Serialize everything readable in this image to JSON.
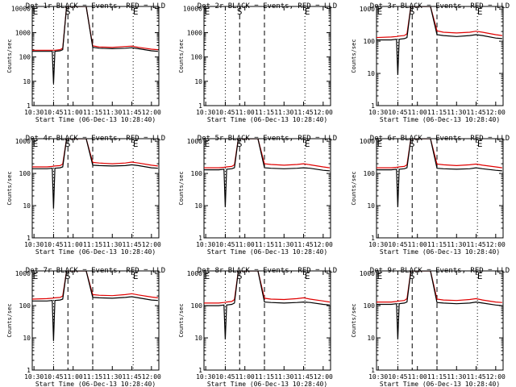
{
  "page": {
    "background": "#ffffff",
    "axis_color": "#000000",
    "events_color": "#000000",
    "lld_color": "#e00000"
  },
  "chart_data": [
    {
      "type": "line",
      "title": "Det 1r BLACK = Events, RED = LLD",
      "xlabel": "Start Time (06-Dec-13 10:28:40)",
      "ylabel": "Counts/sec",
      "x_ticks": [
        "10:30",
        "10:45",
        "11:00",
        "11:15",
        "11:30",
        "11:45",
        "12:00"
      ],
      "y_ticks": [
        "1",
        "10",
        "100",
        "1000",
        "10000"
      ],
      "ylim": [
        1,
        12000
      ],
      "yscale": "log",
      "annotations": [
        "E",
        "S",
        "E"
      ],
      "series": [
        {
          "name": "Events",
          "color": "#000000",
          "x": [
            "10:28",
            "10:40",
            "10:44",
            "10:45",
            "10:46",
            "10:50",
            "10:52",
            "10:55",
            "11:00",
            "11:05",
            "11:10",
            "11:15",
            "11:20",
            "11:30",
            "11:40",
            "11:45",
            "11:50",
            "12:00",
            "12:05"
          ],
          "y": [
            170,
            170,
            170,
            8,
            170,
            180,
            200,
            12000,
            12000,
            12000,
            12000,
            250,
            230,
            220,
            230,
            240,
            220,
            180,
            170
          ]
        },
        {
          "name": "LLD",
          "color": "#e00000",
          "x": [
            "10:28",
            "10:40",
            "10:44",
            "10:46",
            "10:50",
            "10:52",
            "10:55",
            "11:00",
            "11:05",
            "11:10",
            "11:15",
            "11:20",
            "11:30",
            "11:40",
            "11:45",
            "11:50",
            "12:00",
            "12:05"
          ],
          "y": [
            190,
            190,
            190,
            190,
            200,
            230,
            12000,
            12000,
            12000,
            12000,
            290,
            260,
            250,
            270,
            280,
            250,
            210,
            200
          ]
        }
      ]
    },
    {
      "type": "line",
      "title": "Det 2r BLACK = Events, RED = LLD",
      "xlabel": "Start Time (06-Dec-13 10:28:40)",
      "ylabel": "Counts/sec",
      "x_ticks": [
        "10:30",
        "10:45",
        "11:00",
        "11:15",
        "11:30",
        "11:45",
        "12:00"
      ],
      "y_ticks": [
        "1",
        "10",
        "100",
        "1000",
        "10000"
      ],
      "ylim": [
        1,
        12000
      ],
      "yscale": "log",
      "annotations": [
        "E",
        "S",
        "E"
      ],
      "series": []
    },
    {
      "type": "line",
      "title": "Det 3r BLACK = Events, RED = LLD",
      "xlabel": "Start Time (06-Dec-13 10:28:40)",
      "ylabel": "Counts/sec",
      "x_ticks": [
        "10:30",
        "10:45",
        "11:00",
        "11:15",
        "11:30",
        "11:45",
        "12:00"
      ],
      "y_ticks": [
        "1",
        "10",
        "100",
        "1000"
      ],
      "ylim": [
        1,
        1200
      ],
      "yscale": "log",
      "annotations": [
        "E",
        "S",
        "E"
      ],
      "series": [
        {
          "name": "Events",
          "color": "#000000",
          "x": [
            "10:28",
            "10:40",
            "10:44",
            "10:45",
            "10:46",
            "10:50",
            "10:52",
            "10:55",
            "11:00",
            "11:05",
            "11:10",
            "11:15",
            "11:20",
            "11:30",
            "11:40",
            "11:45",
            "11:50",
            "12:00",
            "12:05"
          ],
          "y": [
            110,
            110,
            115,
            9,
            115,
            120,
            130,
            1200,
            1200,
            1200,
            1200,
            160,
            150,
            140,
            150,
            160,
            150,
            125,
            120
          ]
        },
        {
          "name": "LLD",
          "color": "#e00000",
          "x": [
            "10:28",
            "10:40",
            "10:44",
            "10:46",
            "10:50",
            "10:52",
            "10:55",
            "11:00",
            "11:05",
            "11:10",
            "11:15",
            "11:20",
            "11:30",
            "11:40",
            "11:45",
            "11:50",
            "12:00",
            "12:05"
          ],
          "y": [
            130,
            135,
            140,
            145,
            150,
            170,
            1200,
            1200,
            1200,
            1200,
            210,
            190,
            180,
            190,
            205,
            190,
            160,
            150
          ]
        }
      ]
    },
    {
      "type": "line",
      "title": "Det 4r BLACK = Events, RED = LLD",
      "xlabel": "Start Time (06-Dec-13 10:28:40)",
      "ylabel": "Counts/sec",
      "x_ticks": [
        "10:30",
        "10:45",
        "11:00",
        "11:15",
        "11:30",
        "11:45",
        "12:00"
      ],
      "y_ticks": [
        "1",
        "10",
        "100",
        "1000"
      ],
      "ylim": [
        1,
        1200
      ],
      "yscale": "log",
      "annotations": [
        "E",
        "S",
        "E"
      ],
      "series": [
        {
          "name": "Events",
          "color": "#000000",
          "x": [
            "10:28",
            "10:40",
            "10:44",
            "10:45",
            "10:46",
            "10:50",
            "10:52",
            "10:55",
            "11:00",
            "11:05",
            "11:10",
            "11:15",
            "11:20",
            "11:30",
            "11:40",
            "11:45",
            "11:50",
            "12:00",
            "12:05"
          ],
          "y": [
            140,
            140,
            145,
            8,
            145,
            150,
            160,
            1200,
            1200,
            1200,
            1200,
            180,
            175,
            170,
            175,
            185,
            175,
            150,
            145
          ]
        },
        {
          "name": "LLD",
          "color": "#e00000",
          "x": [
            "10:28",
            "10:40",
            "10:44",
            "10:46",
            "10:50",
            "10:52",
            "10:55",
            "11:00",
            "11:05",
            "11:10",
            "11:15",
            "11:20",
            "11:30",
            "11:40",
            "11:45",
            "11:50",
            "12:00",
            "12:05"
          ],
          "y": [
            160,
            160,
            165,
            170,
            175,
            195,
            1200,
            1200,
            1200,
            1200,
            220,
            210,
            200,
            210,
            225,
            210,
            180,
            170
          ]
        }
      ]
    },
    {
      "type": "line",
      "title": "Det 5r BLACK = Events, RED = LLD",
      "xlabel": "Start Time (06-Dec-13 10:28:40)",
      "ylabel": "Counts/sec",
      "x_ticks": [
        "10:30",
        "10:45",
        "11:00",
        "11:15",
        "11:30",
        "11:45",
        "12:00"
      ],
      "y_ticks": [
        "1",
        "10",
        "100",
        "1000"
      ],
      "ylim": [
        1,
        1200
      ],
      "yscale": "log",
      "annotations": [
        "E",
        "S",
        "E"
      ],
      "series": [
        {
          "name": "Events",
          "color": "#000000",
          "x": [
            "10:28",
            "10:40",
            "10:44",
            "10:45",
            "10:46",
            "10:50",
            "10:52",
            "10:55",
            "11:00",
            "11:05",
            "11:10",
            "11:15",
            "11:20",
            "11:30",
            "11:40",
            "11:45",
            "11:50",
            "12:00",
            "12:05"
          ],
          "y": [
            130,
            130,
            135,
            9,
            135,
            140,
            150,
            1200,
            1200,
            1200,
            1200,
            150,
            145,
            140,
            145,
            150,
            145,
            125,
            120
          ]
        },
        {
          "name": "LLD",
          "color": "#e00000",
          "x": [
            "10:28",
            "10:40",
            "10:44",
            "10:46",
            "10:50",
            "10:52",
            "10:55",
            "11:00",
            "11:05",
            "11:10",
            "11:15",
            "11:20",
            "11:30",
            "11:40",
            "11:45",
            "11:50",
            "12:00",
            "12:05"
          ],
          "y": [
            150,
            150,
            155,
            160,
            165,
            185,
            1200,
            1200,
            1200,
            1200,
            200,
            190,
            180,
            190,
            200,
            185,
            160,
            150
          ]
        }
      ]
    },
    {
      "type": "line",
      "title": "Det 6r BLACK = Events, RED = LLD",
      "xlabel": "Start Time (06-Dec-13 10:28:40)",
      "ylabel": "Counts/sec",
      "x_ticks": [
        "10:30",
        "10:45",
        "11:00",
        "11:15",
        "11:30",
        "11:45",
        "12:00"
      ],
      "y_ticks": [
        "1",
        "10",
        "100",
        "1000"
      ],
      "ylim": [
        1,
        1200
      ],
      "yscale": "log",
      "annotations": [
        "E",
        "S",
        "E"
      ],
      "series": [
        {
          "name": "Events",
          "color": "#000000",
          "x": [
            "10:28",
            "10:40",
            "10:44",
            "10:45",
            "10:46",
            "10:50",
            "10:52",
            "10:55",
            "11:00",
            "11:05",
            "11:10",
            "11:15",
            "11:20",
            "11:30",
            "11:40",
            "11:45",
            "11:50",
            "12:00",
            "12:05"
          ],
          "y": [
            130,
            130,
            135,
            9,
            135,
            140,
            150,
            1200,
            1200,
            1200,
            1200,
            145,
            140,
            135,
            140,
            150,
            140,
            125,
            120
          ]
        },
        {
          "name": "LLD",
          "color": "#e00000",
          "x": [
            "10:28",
            "10:40",
            "10:44",
            "10:46",
            "10:50",
            "10:52",
            "10:55",
            "11:00",
            "11:05",
            "11:10",
            "11:15",
            "11:20",
            "11:30",
            "11:40",
            "11:45",
            "11:50",
            "12:00",
            "12:05"
          ],
          "y": [
            150,
            150,
            155,
            160,
            165,
            185,
            1200,
            1200,
            1200,
            1200,
            195,
            185,
            175,
            185,
            195,
            180,
            160,
            150
          ]
        }
      ]
    },
    {
      "type": "line",
      "title": "Det 7r BLACK = Events, RED = LLD",
      "xlabel": "Start Time (06-Dec-13 10:28:40)",
      "ylabel": "Counts/sec",
      "x_ticks": [
        "10:30",
        "10:45",
        "11:00",
        "11:15",
        "11:30",
        "11:45",
        "12:00"
      ],
      "y_ticks": [
        "1",
        "10",
        "100",
        "1000"
      ],
      "ylim": [
        1,
        1200
      ],
      "yscale": "log",
      "annotations": [
        "E",
        "S",
        "E"
      ],
      "series": [
        {
          "name": "Events",
          "color": "#000000",
          "x": [
            "10:28",
            "10:40",
            "10:44",
            "10:45",
            "10:46",
            "10:50",
            "10:52",
            "10:55",
            "11:00",
            "11:05",
            "11:10",
            "11:15",
            "11:20",
            "11:30",
            "11:40",
            "11:45",
            "11:50",
            "12:00",
            "12:05"
          ],
          "y": [
            140,
            140,
            145,
            8,
            145,
            150,
            160,
            1200,
            1200,
            1200,
            1200,
            180,
            175,
            170,
            180,
            190,
            175,
            150,
            145
          ]
        },
        {
          "name": "LLD",
          "color": "#e00000",
          "x": [
            "10:28",
            "10:40",
            "10:44",
            "10:46",
            "10:50",
            "10:52",
            "10:55",
            "11:00",
            "11:05",
            "11:10",
            "11:15",
            "11:20",
            "11:30",
            "11:40",
            "11:45",
            "11:50",
            "12:00",
            "12:05"
          ],
          "y": [
            160,
            165,
            170,
            175,
            180,
            200,
            1200,
            1200,
            1200,
            1200,
            220,
            210,
            205,
            220,
            235,
            215,
            185,
            175
          ]
        }
      ]
    },
    {
      "type": "line",
      "title": "Det 8r BLACK = Events, RED = LLD",
      "xlabel": "Start Time (06-Dec-13 10:28:40)",
      "ylabel": "Counts/sec",
      "x_ticks": [
        "10:30",
        "10:45",
        "11:00",
        "11:15",
        "11:30",
        "11:45",
        "12:00"
      ],
      "y_ticks": [
        "1",
        "10",
        "100",
        "1000"
      ],
      "ylim": [
        1,
        1200
      ],
      "yscale": "log",
      "annotations": [
        "E",
        "S",
        "E"
      ],
      "series": [
        {
          "name": "Events",
          "color": "#000000",
          "x": [
            "10:28",
            "10:40",
            "10:44",
            "10:45",
            "10:46",
            "10:50",
            "10:52",
            "10:55",
            "11:00",
            "11:05",
            "11:10",
            "11:15",
            "11:20",
            "11:30",
            "11:40",
            "11:45",
            "11:50",
            "12:00",
            "12:05"
          ],
          "y": [
            100,
            100,
            105,
            9,
            105,
            110,
            120,
            1200,
            1200,
            1200,
            1200,
            130,
            125,
            120,
            125,
            130,
            125,
            110,
            105
          ]
        },
        {
          "name": "LLD",
          "color": "#e00000",
          "x": [
            "10:28",
            "10:40",
            "10:44",
            "10:46",
            "10:50",
            "10:52",
            "10:55",
            "11:00",
            "11:05",
            "11:10",
            "11:15",
            "11:20",
            "11:30",
            "11:40",
            "11:45",
            "11:50",
            "12:00",
            "12:05"
          ],
          "y": [
            120,
            120,
            125,
            130,
            135,
            155,
            1200,
            1200,
            1200,
            1200,
            170,
            160,
            155,
            165,
            175,
            160,
            140,
            130
          ]
        }
      ]
    },
    {
      "type": "line",
      "title": "Det 9r BLACK = Events, RED = LLD",
      "xlabel": "Start Time (06-Dec-13 10:28:40)",
      "ylabel": "Counts/sec",
      "x_ticks": [
        "10:30",
        "10:45",
        "11:00",
        "11:15",
        "11:30",
        "11:45",
        "12:00"
      ],
      "y_ticks": [
        "1",
        "10",
        "100",
        "1000"
      ],
      "ylim": [
        1,
        1200
      ],
      "yscale": "log",
      "annotations": [
        "E",
        "S",
        "E"
      ],
      "series": [
        {
          "name": "Events",
          "color": "#000000",
          "x": [
            "10:28",
            "10:40",
            "10:44",
            "10:45",
            "10:46",
            "10:50",
            "10:52",
            "10:55",
            "11:00",
            "11:05",
            "11:10",
            "11:15",
            "11:20",
            "11:30",
            "11:40",
            "11:45",
            "11:50",
            "12:00",
            "12:05"
          ],
          "y": [
            110,
            110,
            115,
            9,
            115,
            120,
            130,
            1200,
            1200,
            1200,
            1200,
            125,
            120,
            115,
            120,
            130,
            120,
            105,
            100
          ]
        },
        {
          "name": "LLD",
          "color": "#e00000",
          "x": [
            "10:28",
            "10:40",
            "10:44",
            "10:46",
            "10:50",
            "10:52",
            "10:55",
            "11:00",
            "11:05",
            "11:10",
            "11:15",
            "11:20",
            "11:30",
            "11:40",
            "11:45",
            "11:50",
            "12:00",
            "12:05"
          ],
          "y": [
            130,
            130,
            135,
            140,
            145,
            165,
            1200,
            1200,
            1200,
            1200,
            160,
            150,
            145,
            155,
            165,
            150,
            130,
            125
          ]
        }
      ]
    }
  ]
}
